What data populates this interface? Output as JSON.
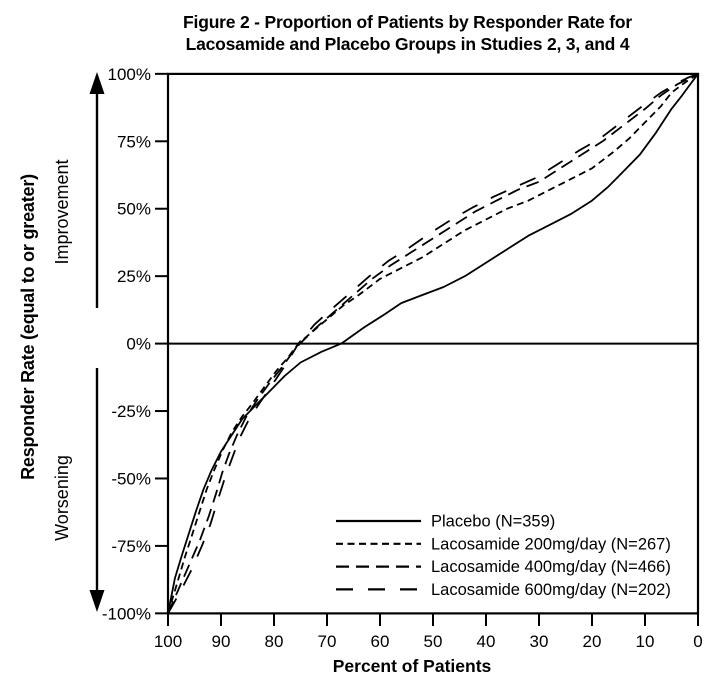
{
  "figure": {
    "title_line1": "Figure 2 - Proportion of Patients by Responder Rate for",
    "title_line2": "Lacosamide and Placebo Groups in Studies 2, 3, and 4"
  },
  "chart_data": {
    "type": "line",
    "title": "Figure 2 - Proportion of Patients by Responder Rate for Lacosamide and Placebo Groups in Studies 2, 3, and 4",
    "xlabel": "Percent of Patients",
    "ylabel": "Responder Rate (equal to or greater)",
    "y_direction_labels": {
      "up": "Improvement",
      "down": "Worsening"
    },
    "x_axis_reversed": true,
    "xlim": [
      100,
      0
    ],
    "ylim": [
      -100,
      100
    ],
    "x_ticks": [
      100,
      90,
      80,
      70,
      60,
      50,
      40,
      30,
      20,
      10,
      0
    ],
    "y_ticks": [
      {
        "value": 100,
        "label": "100%"
      },
      {
        "value": 75,
        "label": "75%"
      },
      {
        "value": 50,
        "label": "50%"
      },
      {
        "value": 25,
        "label": "25%"
      },
      {
        "value": 0,
        "label": "0%"
      },
      {
        "value": -25,
        "label": "-25%"
      },
      {
        "value": -50,
        "label": "-50%"
      },
      {
        "value": -75,
        "label": "-75%"
      },
      {
        "value": -100,
        "label": "-100%"
      }
    ],
    "reference_line_y": 0,
    "grid": false,
    "legend_position": "inside-lower-right",
    "colors": {
      "line": "#000000",
      "background": "#ffffff"
    },
    "series": [
      {
        "key": "placebo",
        "name": "Placebo (N=359)",
        "line_style": "solid",
        "dash": "",
        "points": [
          [
            100,
            -100
          ],
          [
            98.7,
            -87
          ],
          [
            97.3,
            -78
          ],
          [
            96,
            -70
          ],
          [
            94.7,
            -62
          ],
          [
            93.3,
            -54
          ],
          [
            91.8,
            -47
          ],
          [
            90,
            -40
          ],
          [
            88,
            -34
          ],
          [
            86,
            -28
          ],
          [
            83.5,
            -23
          ],
          [
            81,
            -18
          ],
          [
            78,
            -12
          ],
          [
            75,
            -7
          ],
          [
            71,
            -3
          ],
          [
            67.3,
            0
          ],
          [
            63,
            6
          ],
          [
            59,
            11
          ],
          [
            56,
            15
          ],
          [
            52,
            18
          ],
          [
            48,
            21
          ],
          [
            44,
            25
          ],
          [
            40,
            30
          ],
          [
            36,
            35
          ],
          [
            32,
            40
          ],
          [
            28,
            44
          ],
          [
            24,
            48
          ],
          [
            20,
            53
          ],
          [
            17,
            58
          ],
          [
            14,
            64
          ],
          [
            11,
            70
          ],
          [
            8,
            78
          ],
          [
            5,
            87
          ],
          [
            3,
            92
          ],
          [
            1.5,
            96
          ],
          [
            0,
            100
          ]
        ]
      },
      {
        "key": "lacosamide-200",
        "name": "Lacosamide 200mg/day (N=267)",
        "line_style": "short-dash",
        "dash": "7 4.5",
        "points": [
          [
            100,
            -100
          ],
          [
            98.3,
            -89
          ],
          [
            96.8,
            -79
          ],
          [
            95.3,
            -70
          ],
          [
            94,
            -62
          ],
          [
            92.7,
            -54
          ],
          [
            91.3,
            -47
          ],
          [
            89.8,
            -40
          ],
          [
            88,
            -33
          ],
          [
            86,
            -27
          ],
          [
            84,
            -22
          ],
          [
            81.8,
            -16
          ],
          [
            79.5,
            -10
          ],
          [
            77.3,
            -5
          ],
          [
            75.4,
            0
          ],
          [
            73,
            4
          ],
          [
            70,
            9
          ],
          [
            67,
            14
          ],
          [
            64,
            18
          ],
          [
            60,
            24
          ],
          [
            56,
            28
          ],
          [
            52,
            32
          ],
          [
            48,
            37
          ],
          [
            44,
            42
          ],
          [
            40,
            46
          ],
          [
            36,
            50
          ],
          [
            32,
            53
          ],
          [
            28,
            57
          ],
          [
            24,
            61
          ],
          [
            20,
            65
          ],
          [
            16,
            71
          ],
          [
            13,
            76
          ],
          [
            10,
            82
          ],
          [
            7,
            88
          ],
          [
            5,
            93
          ],
          [
            3,
            96
          ],
          [
            1.5,
            98
          ],
          [
            0,
            100
          ]
        ]
      },
      {
        "key": "lacosamide-400",
        "name": "Lacosamide 400mg/day (N=466)",
        "line_style": "medium-dash",
        "dash": "13 7",
        "points": [
          [
            100,
            -100
          ],
          [
            98,
            -91
          ],
          [
            96,
            -82
          ],
          [
            94,
            -73
          ],
          [
            92.3,
            -64
          ],
          [
            91,
            -56
          ],
          [
            89.8,
            -48
          ],
          [
            88.5,
            -41
          ],
          [
            87,
            -34
          ],
          [
            85.2,
            -27
          ],
          [
            83.2,
            -21
          ],
          [
            81,
            -15
          ],
          [
            78.6,
            -9
          ],
          [
            76.4,
            -3
          ],
          [
            75.1,
            0
          ],
          [
            72,
            6
          ],
          [
            68.5,
            12
          ],
          [
            65,
            18
          ],
          [
            61.5,
            24
          ],
          [
            58,
            29
          ],
          [
            54,
            34
          ],
          [
            50,
            39
          ],
          [
            46,
            44
          ],
          [
            42,
            49
          ],
          [
            38,
            53
          ],
          [
            34,
            57
          ],
          [
            30,
            60
          ],
          [
            26,
            65
          ],
          [
            22,
            70
          ],
          [
            18,
            75
          ],
          [
            14,
            81
          ],
          [
            10,
            87
          ],
          [
            7,
            92
          ],
          [
            4,
            96
          ],
          [
            2,
            98
          ],
          [
            0,
            100
          ]
        ]
      },
      {
        "key": "lacosamide-600",
        "name": "Lacosamide 600mg/day (N=202)",
        "line_style": "long-dash",
        "dash": "17 15",
        "points": [
          [
            100,
            -100
          ],
          [
            97.7,
            -92
          ],
          [
            95.6,
            -84
          ],
          [
            93.6,
            -75
          ],
          [
            92,
            -67
          ],
          [
            90.6,
            -58
          ],
          [
            89.3,
            -50
          ],
          [
            88,
            -43
          ],
          [
            86.5,
            -35
          ],
          [
            84.7,
            -28
          ],
          [
            82.7,
            -22
          ],
          [
            80.6,
            -16
          ],
          [
            78.2,
            -9
          ],
          [
            76,
            -2
          ],
          [
            75.4,
            0
          ],
          [
            72.4,
            7
          ],
          [
            69,
            13
          ],
          [
            65.5,
            19
          ],
          [
            62,
            25
          ],
          [
            58.5,
            30.5
          ],
          [
            54.5,
            35.5
          ],
          [
            50.5,
            41
          ],
          [
            46.5,
            46
          ],
          [
            42.5,
            50.5
          ],
          [
            38.5,
            54.5
          ],
          [
            34.5,
            58
          ],
          [
            30.5,
            61.5
          ],
          [
            26.5,
            66.5
          ],
          [
            22.5,
            71.5
          ],
          [
            18.5,
            76
          ],
          [
            14.5,
            82
          ],
          [
            10.5,
            88
          ],
          [
            7,
            93
          ],
          [
            4,
            96.5
          ],
          [
            2,
            98.5
          ],
          [
            0,
            100
          ]
        ]
      }
    ]
  }
}
